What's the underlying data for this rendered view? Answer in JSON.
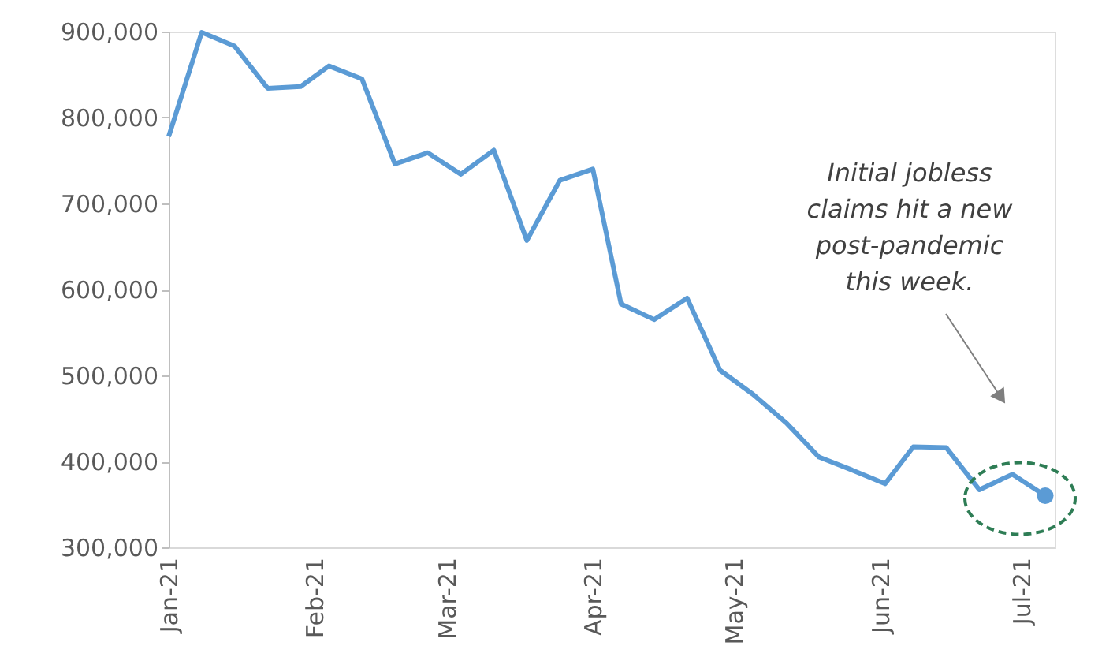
{
  "chart_data": {
    "type": "line",
    "x": [
      "2021-01-01",
      "2021-01-08",
      "2021-01-15",
      "2021-01-22",
      "2021-01-29",
      "2021-02-04",
      "2021-02-11",
      "2021-02-18",
      "2021-02-25",
      "2021-03-04",
      "2021-03-11",
      "2021-03-18",
      "2021-03-25",
      "2021-04-01",
      "2021-04-07",
      "2021-04-14",
      "2021-04-21",
      "2021-04-28",
      "2021-05-05",
      "2021-05-12",
      "2021-05-19",
      "2021-05-26",
      "2021-06-02",
      "2021-06-08",
      "2021-06-15",
      "2021-06-22",
      "2021-06-29",
      "2021-07-06"
    ],
    "series": [
      {
        "color": "#5b9bd5",
        "values": [
          778000,
          899000,
          883000,
          834000,
          836000,
          860000,
          845000,
          746000,
          759000,
          734000,
          762000,
          657000,
          727000,
          740000,
          583000,
          565000,
          590000,
          506000,
          478000,
          445000,
          405000,
          390000,
          374000,
          417000,
          416000,
          367000,
          385000,
          360000
        ]
      },
      {
        "type": "scatter",
        "color": "#5b9bd5",
        "x": [
          "2021-07-06"
        ],
        "values": [
          360000
        ],
        "marker": "circle"
      }
    ],
    "xlim": [
      "2021-01-01",
      "2021-07-08"
    ],
    "xticks": [
      {
        "value": "2021-01-01",
        "label": "Jan-21"
      },
      {
        "value": "2021-02-01",
        "label": "Feb-21"
      },
      {
        "value": "2021-03-01",
        "label": "Mar-21"
      },
      {
        "value": "2021-04-01",
        "label": "Apr-21"
      },
      {
        "value": "2021-05-01",
        "label": "May-21"
      },
      {
        "value": "2021-06-01",
        "label": "Jun-21"
      },
      {
        "value": "2021-07-01",
        "label": "Jul-21"
      }
    ],
    "ylim": [
      300000,
      900000
    ],
    "yticks": [
      {
        "value": 300000,
        "label": "300,000"
      },
      {
        "value": 400000,
        "label": "400,000"
      },
      {
        "value": 500000,
        "label": "500,000"
      },
      {
        "value": 600000,
        "label": "600,000"
      },
      {
        "value": 700000,
        "label": "700,000"
      },
      {
        "value": 800000,
        "label": "800,000"
      },
      {
        "value": 900000,
        "label": "900,000"
      }
    ],
    "grid": false,
    "marker": "none",
    "line_style": "solid",
    "annotations": [
      "Initial jobless\nclaims hit a new\npost-pandemic\nthis week."
    ]
  }
}
